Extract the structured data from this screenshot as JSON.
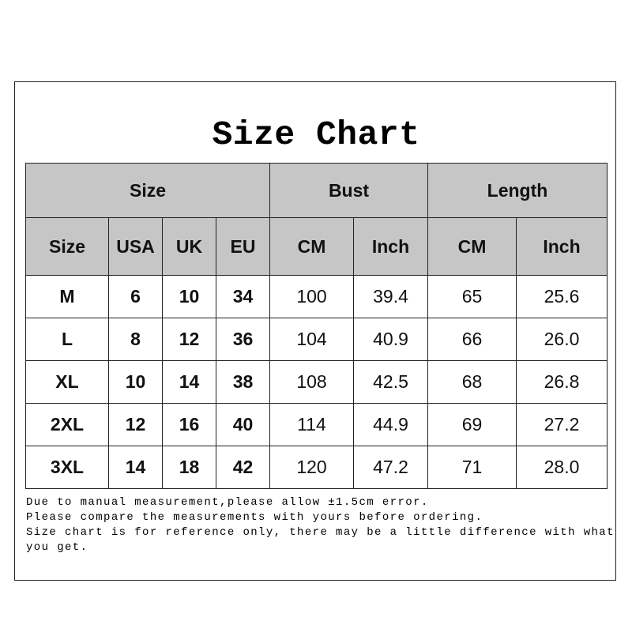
{
  "title": "Size Chart",
  "header_groups": [
    "Size",
    "Bust",
    "Length"
  ],
  "columns": [
    "Size",
    "USA",
    "UK",
    "EU",
    "CM",
    "Inch",
    "CM",
    "Inch"
  ],
  "rows": [
    [
      "M",
      "6",
      "10",
      "34",
      "100",
      "39.4",
      "65",
      "25.6"
    ],
    [
      "L",
      "8",
      "12",
      "36",
      "104",
      "40.9",
      "66",
      "26.0"
    ],
    [
      "XL",
      "10",
      "14",
      "38",
      "108",
      "42.5",
      "68",
      "26.8"
    ],
    [
      "2XL",
      "12",
      "16",
      "40",
      "114",
      "44.9",
      "69",
      "27.2"
    ],
    [
      "3XL",
      "14",
      "18",
      "42",
      "120",
      "47.2",
      "71",
      "28.0"
    ]
  ],
  "notes": [
    "Due to manual measurement,please allow ±1.5cm error.",
    "Please compare the measurements with yours before ordering.",
    "Size chart is for reference only, there may be a little difference with what you get."
  ],
  "colors": {
    "header_bg": "#c6c6c6",
    "border": "#222222"
  }
}
